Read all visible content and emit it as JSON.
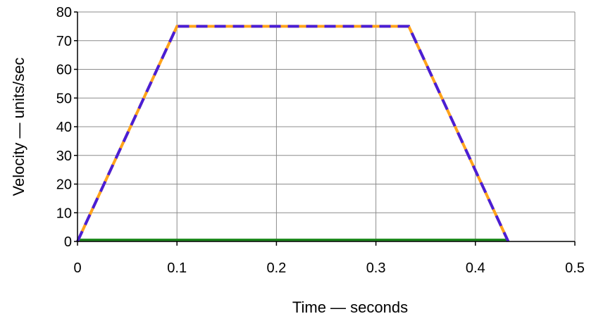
{
  "chart_data": {
    "type": "line",
    "title": "",
    "xlabel": "Time — seconds",
    "ylabel": "Velocity — units/sec",
    "xlim": [
      0,
      0.5
    ],
    "ylim": [
      0,
      80
    ],
    "xticks": [
      0,
      0.1,
      0.2,
      0.3,
      0.4,
      0.5
    ],
    "yticks": [
      0,
      10,
      20,
      30,
      40,
      50,
      60,
      70,
      80
    ],
    "xtick_labels": [
      "0",
      "0.1",
      "0.2",
      "0.3",
      "0.4",
      "0.5"
    ],
    "ytick_labels": [
      "0",
      "10",
      "20",
      "30",
      "40",
      "50",
      "60",
      "70",
      "80"
    ],
    "grid": true,
    "legend": "none",
    "series": [
      {
        "x": [
          0,
          0.1,
          0.333,
          0.433
        ],
        "y": [
          0,
          75,
          75,
          0
        ],
        "color": "#ffa31a",
        "style": "solid"
      },
      {
        "x": [
          0,
          0.1,
          0.333,
          0.433
        ],
        "y": [
          0,
          75,
          75,
          0
        ],
        "color": "#4a1ed6",
        "style": "dashed"
      },
      {
        "x": [
          0,
          0.433
        ],
        "y": [
          0.5,
          0.5
        ],
        "color": "#1f8a1f",
        "style": "solid"
      }
    ]
  }
}
